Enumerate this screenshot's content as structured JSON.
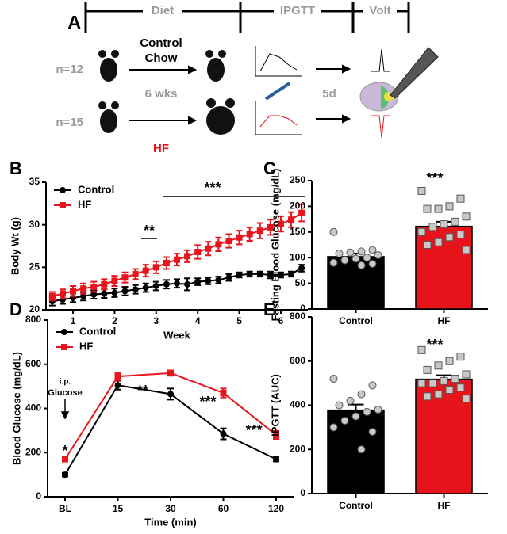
{
  "panel_a": {
    "label": "A",
    "phases": [
      "Diet",
      "IPGTT",
      "Volt"
    ],
    "groups": [
      "n=12",
      "n=15"
    ],
    "control_diet": [
      "Control",
      "Chow"
    ],
    "duration": "6 wks",
    "hf_diet": "HF",
    "delay": "5d"
  },
  "chart_data": [
    {
      "type": "line",
      "panel": "B",
      "ylabel": "Body Wt (g)",
      "xlabel": "Week",
      "x": [
        0.5,
        0.75,
        1,
        1.25,
        1.5,
        1.75,
        2,
        2.25,
        2.5,
        2.75,
        3,
        3.25,
        3.5,
        3.75,
        4,
        4.25,
        4.5,
        4.75,
        5,
        5.25,
        5.5,
        5.75,
        6,
        6.25,
        6.5
      ],
      "xlim": [
        0.35,
        6.65
      ],
      "xticks": [
        1,
        2,
        3,
        4,
        5,
        6
      ],
      "ylim": [
        20,
        35
      ],
      "yticks": [
        20,
        25,
        30,
        35
      ],
      "series": [
        {
          "name": "Control",
          "color": "#000000",
          "marker": "circle",
          "values": [
            21.0,
            21.2,
            21.4,
            21.6,
            21.8,
            21.9,
            22.0,
            22.2,
            22.4,
            22.6,
            22.8,
            23.0,
            23.1,
            23.0,
            23.3,
            23.4,
            23.5,
            23.8,
            24.1,
            24.2,
            24.2,
            24.1,
            24.1,
            24.2,
            24.9
          ],
          "errors": [
            0.5,
            0.5,
            0.5,
            0.5,
            0.5,
            0.5,
            0.5,
            0.5,
            0.5,
            0.5,
            0.5,
            0.5,
            0.5,
            0.7,
            0.4,
            0.4,
            0.4,
            0.4,
            0.3,
            0.3,
            0.3,
            0.4,
            0.3,
            0.3,
            0.4
          ]
        },
        {
          "name": "HF",
          "color": "#e8141b",
          "marker": "square",
          "values": [
            21.6,
            21.9,
            22.2,
            22.5,
            22.7,
            23.0,
            23.4,
            23.8,
            24.2,
            24.6,
            25.0,
            25.5,
            25.9,
            26.3,
            26.8,
            27.2,
            27.7,
            28.1,
            28.5,
            28.9,
            29.3,
            29.7,
            30.1,
            30.6,
            31.4
          ],
          "errors": [
            0.5,
            0.5,
            0.6,
            0.6,
            0.6,
            0.6,
            0.6,
            0.6,
            0.6,
            0.7,
            0.7,
            0.7,
            0.7,
            0.7,
            0.8,
            0.8,
            0.8,
            0.8,
            0.8,
            0.8,
            0.9,
            0.9,
            0.9,
            0.9,
            1.0
          ]
        }
      ],
      "annotations": [
        "**",
        "***"
      ]
    },
    {
      "type": "bar",
      "panel": "C",
      "ylabel": "Fasting Blood Glucose (mg/dL)",
      "categories": [
        "Control",
        "HF"
      ],
      "values": [
        102,
        161
      ],
      "errors": [
        6,
        9
      ],
      "colors": [
        "#000000",
        "#e8141b"
      ],
      "ylim": [
        0,
        250
      ],
      "yticks": [
        0,
        50,
        100,
        150,
        200,
        250
      ],
      "points": [
        [
          150,
          115,
          112,
          110,
          108,
          105,
          100,
          98,
          95,
          90,
          88,
          85
        ],
        [
          230,
          215,
          200,
          195,
          195,
          180,
          170,
          165,
          160,
          150,
          145,
          140,
          130,
          125,
          115
        ]
      ],
      "point_color": "#c8c8c8",
      "point_markers": [
        "circle",
        "square"
      ],
      "annotations": [
        "***"
      ]
    },
    {
      "type": "line",
      "panel": "D",
      "ylabel": "Blood Glucose (mg/dL)",
      "xlabel": "Time (min)",
      "categories": [
        "BL",
        "15",
        "30",
        "60",
        "120"
      ],
      "ylim": [
        0,
        800
      ],
      "yticks": [
        0,
        200,
        400,
        600,
        800
      ],
      "series": [
        {
          "name": "Control",
          "color": "#000000",
          "marker": "circle",
          "values": [
            100,
            505,
            465,
            285,
            170
          ],
          "errors": [
            8,
            20,
            25,
            25,
            10
          ]
        },
        {
          "name": "HF",
          "color": "#e8141b",
          "marker": "square",
          "values": [
            170,
            545,
            560,
            470,
            280
          ],
          "errors": [
            10,
            18,
            12,
            20,
            18
          ]
        }
      ],
      "annotations": [
        "*",
        "**",
        "***",
        "***",
        "i.p.",
        "Glucose"
      ]
    },
    {
      "type": "bar",
      "panel": "E",
      "ylabel": "IPGTT (AUC)",
      "categories": [
        "Control",
        "HF"
      ],
      "values": [
        378,
        518
      ],
      "errors": [
        25,
        18
      ],
      "colors": [
        "#000000",
        "#e8141b"
      ],
      "ylim": [
        0,
        800
      ],
      "yticks": [
        0,
        200,
        400,
        600,
        800
      ],
      "points": [
        [
          520,
          490,
          450,
          420,
          400,
          380,
          370,
          350,
          330,
          300,
          280,
          200
        ],
        [
          650,
          620,
          600,
          580,
          560,
          540,
          520,
          510,
          500,
          500,
          480,
          470,
          450,
          440,
          430
        ]
      ],
      "point_color": "#c8c8c8",
      "point_markers": [
        "circle",
        "square"
      ],
      "annotations": [
        "***"
      ]
    }
  ]
}
